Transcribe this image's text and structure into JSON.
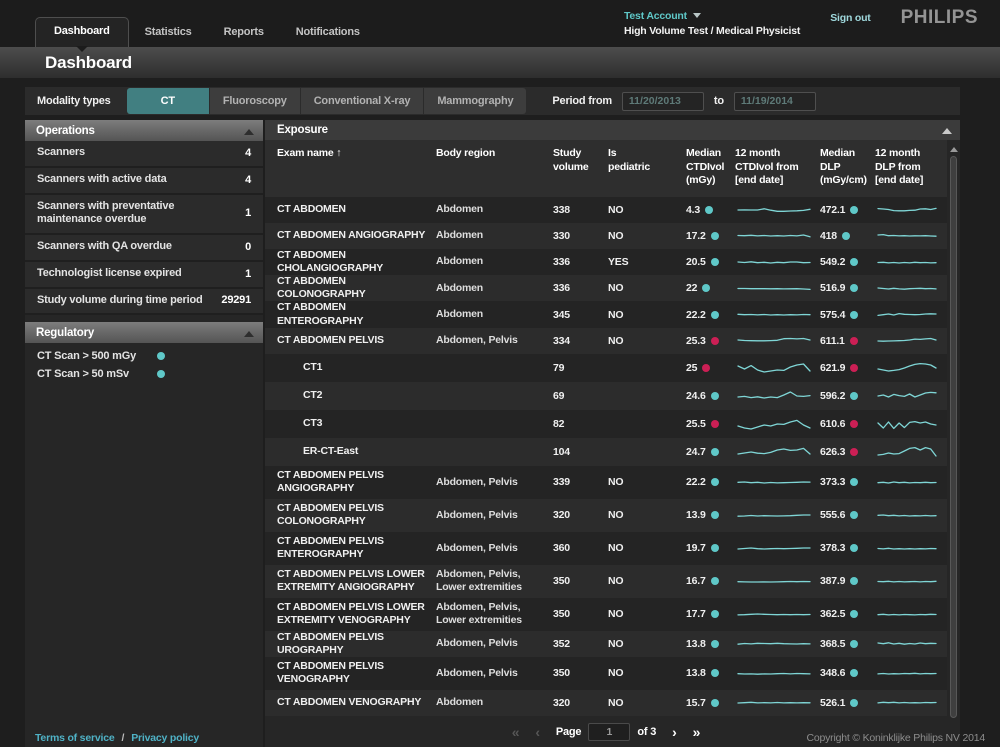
{
  "colors": {
    "accent_teal": "#417f81",
    "dot_ok": "#5fc8c8",
    "dot_alert": "#cc1f55",
    "sparkline": "#7fd6d6"
  },
  "nav": {
    "tabs": [
      {
        "label": "Dashboard",
        "active": true
      },
      {
        "label": "Statistics",
        "active": false
      },
      {
        "label": "Reports",
        "active": false
      },
      {
        "label": "Notifications",
        "active": false
      }
    ],
    "account": {
      "name": "Test Account",
      "role": "High Volume Test / Medical Physicist"
    },
    "sign_out": "Sign out",
    "brand": "PHILIPS"
  },
  "page": {
    "title": "Dashboard"
  },
  "filters": {
    "modality_label": "Modality types",
    "modalities": [
      {
        "label": "CT",
        "selected": true
      },
      {
        "label": "Fluoroscopy",
        "selected": false
      },
      {
        "label": "Conventional X-ray",
        "selected": false
      },
      {
        "label": "Mammography",
        "selected": false
      }
    ],
    "period_from_label": "Period from",
    "from_value": "11/20/2013",
    "to_label": "to",
    "to_value": "11/19/2014"
  },
  "sidebar": {
    "operations": {
      "title": "Operations",
      "stats": [
        {
          "label": "Scanners",
          "value": "4"
        },
        {
          "label": "Scanners with active data",
          "value": "4"
        },
        {
          "label": "Scanners with preventative maintenance overdue",
          "value": "1"
        },
        {
          "label": "Scanners with QA overdue",
          "value": "0"
        },
        {
          "label": "Technologist license expired",
          "value": "1"
        },
        {
          "label": "Study volume during time period",
          "value": "29291"
        }
      ]
    },
    "regulatory": {
      "title": "Regulatory",
      "items": [
        {
          "label": "CT Scan > 500 mGy",
          "status": "ok"
        },
        {
          "label": "CT Scan > 50 mSv",
          "status": "ok"
        }
      ]
    }
  },
  "table": {
    "title": "Exposure",
    "columns": [
      {
        "label": "Exam name",
        "sort": "asc"
      },
      {
        "label": "Body region"
      },
      {
        "label": "Study\nvolume"
      },
      {
        "label": "Is\npediatric"
      },
      {
        "label": "Median\nCTDIvol\n(mGy)"
      },
      {
        "label": "12 month\nCTDIvol from\n[end date]"
      },
      {
        "label": "Median\nDLP\n(mGy/cm)"
      },
      {
        "label": "12 month\nDLP from\n[end date]"
      }
    ],
    "rows": [
      {
        "name": "CT ABDOMEN",
        "body": "Abdomen",
        "volume": "338",
        "pediatric": "NO",
        "ctdi": "4.3",
        "ctdi_status": "ok",
        "ctdi_trend": [
          45,
          46,
          44,
          45,
          58,
          42,
          30,
          30,
          33,
          36,
          40,
          52
        ],
        "dlp": "472.1",
        "dlp_status": "ok",
        "dlp_trend": [
          60,
          55,
          50,
          38,
          35,
          35,
          40,
          42,
          55,
          58,
          50,
          62
        ],
        "type": "normal",
        "lines": 1
      },
      {
        "name": "CT ABDOMEN ANGIOGRAPHY",
        "body": "Abdomen",
        "volume": "330",
        "pediatric": "NO",
        "ctdi": "17.2",
        "ctdi_status": "ok",
        "ctdi_trend": [
          50,
          48,
          52,
          46,
          50,
          44,
          48,
          45,
          50,
          46,
          55,
          35
        ],
        "dlp": "418",
        "dlp_status": "ok",
        "dlp_trend": [
          55,
          60,
          48,
          50,
          46,
          48,
          45,
          47,
          46,
          48,
          45,
          42
        ],
        "type": "normal",
        "lines": 1
      },
      {
        "name": "CT ABDOMEN CHOLANGIOGRAPHY",
        "body": "Abdomen",
        "volume": "336",
        "pediatric": "YES",
        "ctdi": "20.5",
        "ctdi_status": "ok",
        "ctdi_trend": [
          55,
          50,
          58,
          48,
          52,
          45,
          52,
          48,
          55,
          55,
          48,
          50
        ],
        "dlp": "549.2",
        "dlp_status": "ok",
        "dlp_trend": [
          50,
          52,
          46,
          50,
          44,
          50,
          46,
          52,
          48,
          50,
          46,
          48
        ],
        "type": "normal",
        "lines": 1
      },
      {
        "name": "CT ABDOMEN COLONOGRAPHY",
        "body": "Abdomen",
        "volume": "336",
        "pediatric": "NO",
        "ctdi": "22",
        "ctdi_status": "ok",
        "ctdi_trend": [
          50,
          50,
          48,
          49,
          48,
          47,
          48,
          46,
          47,
          48,
          45,
          40
        ],
        "dlp": "516.9",
        "dlp_status": "ok",
        "dlp_trend": [
          55,
          50,
          45,
          52,
          46,
          42,
          48,
          50,
          52,
          48,
          50,
          46
        ],
        "type": "normal",
        "lines": 1
      },
      {
        "name": "CT ABDOMEN ENTEROGRAPHY",
        "body": "Abdomen",
        "volume": "345",
        "pediatric": "NO",
        "ctdi": "22.2",
        "ctdi_status": "ok",
        "ctdi_trend": [
          52,
          48,
          50,
          46,
          50,
          44,
          48,
          44,
          48,
          46,
          50,
          48
        ],
        "dlp": "575.4",
        "dlp_status": "ok",
        "dlp_trend": [
          40,
          48,
          55,
          45,
          60,
          52,
          50,
          48,
          50,
          55,
          58,
          56
        ],
        "type": "normal",
        "lines": 1
      },
      {
        "name": "CT ABDOMEN PELVIS",
        "body": "Abdomen, Pelvis",
        "volume": "334",
        "pediatric": "NO",
        "ctdi": "25.3",
        "ctdi_status": "alert",
        "ctdi_trend": [
          55,
          50,
          48,
          47,
          47,
          49,
          52,
          70,
          72,
          68,
          72,
          55
        ],
        "dlp": "611.1",
        "dlp_status": "alert",
        "dlp_trend": [
          45,
          42,
          44,
          46,
          48,
          50,
          55,
          65,
          62,
          68,
          72,
          55
        ],
        "type": "normal",
        "lines": 1
      },
      {
        "name": "CT1",
        "body": "",
        "volume": "79",
        "pediatric": "",
        "ctdi": "25",
        "ctdi_status": "alert",
        "ctdi_trend": [
          60,
          45,
          62,
          40,
          30,
          35,
          40,
          38,
          55,
          65,
          70,
          35
        ],
        "dlp": "621.9",
        "dlp_status": "alert",
        "dlp_trend": [
          45,
          40,
          35,
          38,
          42,
          50,
          60,
          68,
          72,
          70,
          65,
          50
        ],
        "type": "scanner",
        "lines": 1
      },
      {
        "name": "CT2",
        "body": "",
        "volume": "69",
        "pediatric": "",
        "ctdi": "24.6",
        "ctdi_status": "ok",
        "ctdi_trend": [
          45,
          48,
          42,
          46,
          40,
          45,
          42,
          55,
          70,
          50,
          48,
          52
        ],
        "dlp": "596.2",
        "dlp_status": "ok",
        "dlp_trend": [
          50,
          55,
          45,
          58,
          52,
          48,
          60,
          45,
          55,
          65,
          68,
          66
        ],
        "type": "scanner",
        "lines": 1
      },
      {
        "name": "CT3",
        "body": "",
        "volume": "82",
        "pediatric": "",
        "ctdi": "25.5",
        "ctdi_status": "alert",
        "ctdi_trend": [
          40,
          30,
          25,
          35,
          45,
          40,
          50,
          48,
          60,
          68,
          45,
          30
        ],
        "dlp": "610.6",
        "dlp_status": "alert",
        "dlp_trend": [
          55,
          30,
          60,
          28,
          55,
          32,
          58,
          62,
          55,
          60,
          50,
          45
        ],
        "type": "scanner",
        "lines": 1
      },
      {
        "name": "ER-CT-East",
        "body": "",
        "volume": "104",
        "pediatric": "",
        "ctdi": "24.7",
        "ctdi_status": "ok",
        "ctdi_trend": [
          40,
          45,
          50,
          44,
          42,
          48,
          60,
          65,
          58,
          60,
          68,
          40
        ],
        "dlp": "626.3",
        "dlp_status": "alert",
        "dlp_trend": [
          35,
          38,
          45,
          40,
          42,
          55,
          68,
          72,
          60,
          72,
          65,
          30
        ],
        "type": "scanner",
        "lines": 1
      },
      {
        "name": "CT ABDOMEN PELVIS ANGIOGRAPHY",
        "body": "Abdomen, Pelvis",
        "volume": "339",
        "pediatric": "NO",
        "ctdi": "22.2",
        "ctdi_status": "ok",
        "ctdi_trend": [
          52,
          55,
          48,
          52,
          45,
          50,
          46,
          48,
          50,
          52,
          55,
          54
        ],
        "dlp": "373.3",
        "dlp_status": "ok",
        "dlp_trend": [
          48,
          52,
          45,
          55,
          48,
          52,
          46,
          50,
          48,
          52,
          48,
          50
        ],
        "type": "normal",
        "lines": 2
      },
      {
        "name": "CT ABDOMEN PELVIS COLONOGRAPHY",
        "body": "Abdomen, Pelvis",
        "volume": "320",
        "pediatric": "NO",
        "ctdi": "13.9",
        "ctdi_status": "ok",
        "ctdi_trend": [
          42,
          45,
          50,
          44,
          48,
          46,
          44,
          46,
          48,
          52,
          55,
          56
        ],
        "dlp": "555.6",
        "dlp_status": "ok",
        "dlp_trend": [
          52,
          55,
          48,
          52,
          46,
          50,
          45,
          48,
          46,
          50,
          46,
          48
        ],
        "type": "normal",
        "lines": 2
      },
      {
        "name": "CT ABDOMEN PELVIS ENTEROGRAPHY",
        "body": "Abdomen, Pelvis",
        "volume": "360",
        "pediatric": "NO",
        "ctdi": "19.7",
        "ctdi_status": "ok",
        "ctdi_trend": [
          45,
          50,
          55,
          48,
          44,
          48,
          50,
          48,
          50,
          52,
          55,
          56
        ],
        "dlp": "378.3",
        "dlp_status": "ok",
        "dlp_trend": [
          50,
          46,
          52,
          44,
          48,
          44,
          48,
          45,
          48,
          46,
          50,
          48
        ],
        "type": "normal",
        "lines": 2
      },
      {
        "name": "CT ABDOMEN PELVIS LOWER EXTREMITY ANGIOGRAPHY",
        "body": "Abdomen, Pelvis, Lower extremities",
        "volume": "350",
        "pediatric": "NO",
        "ctdi": "16.7",
        "ctdi_status": "ok",
        "ctdi_trend": [
          48,
          46,
          44,
          45,
          46,
          45,
          46,
          48,
          50,
          48,
          50,
          49
        ],
        "dlp": "387.9",
        "dlp_status": "ok",
        "dlp_trend": [
          50,
          48,
          52,
          46,
          50,
          46,
          48,
          50,
          46,
          50,
          48,
          52
        ],
        "type": "normal",
        "lines": 2
      },
      {
        "name": "CT ABDOMEN PELVIS LOWER EXTREMITY VENOGRAPHY",
        "body": "Abdomen, Pelvis, Lower extremities",
        "volume": "350",
        "pediatric": "NO",
        "ctdi": "17.7",
        "ctdi_status": "ok",
        "ctdi_trend": [
          46,
          48,
          52,
          55,
          52,
          50,
          48,
          50,
          48,
          50,
          48,
          50
        ],
        "dlp": "362.5",
        "dlp_status": "ok",
        "dlp_trend": [
          48,
          52,
          46,
          50,
          46,
          50,
          48,
          46,
          50,
          48,
          52,
          50
        ],
        "type": "normal",
        "lines": 2
      },
      {
        "name": "CT ABDOMEN PELVIS UROGRAPHY",
        "body": "Abdomen, Pelvis",
        "volume": "352",
        "pediatric": "NO",
        "ctdi": "13.8",
        "ctdi_status": "ok",
        "ctdi_trend": [
          42,
          50,
          46,
          52,
          50,
          48,
          52,
          48,
          46,
          44,
          48,
          46
        ],
        "dlp": "368.5",
        "dlp_status": "ok",
        "dlp_trend": [
          55,
          48,
          58,
          45,
          52,
          42,
          50,
          45,
          55,
          48,
          52,
          50
        ],
        "type": "normal",
        "lines": 1
      },
      {
        "name": "CT ABDOMEN PELVIS VENOGRAPHY",
        "body": "Abdomen, Pelvis",
        "volume": "350",
        "pediatric": "NO",
        "ctdi": "13.8",
        "ctdi_status": "ok",
        "ctdi_trend": [
          48,
          44,
          46,
          42,
          46,
          44,
          48,
          50,
          46,
          50,
          48,
          46
        ],
        "dlp": "348.6",
        "dlp_status": "ok",
        "dlp_trend": [
          46,
          50,
          44,
          48,
          46,
          50,
          48,
          52,
          46,
          50,
          48,
          50
        ],
        "type": "normal",
        "lines": 2
      },
      {
        "name": "CT ABDOMEN VENOGRAPHY",
        "body": "Abdomen",
        "volume": "320",
        "pediatric": "NO",
        "ctdi": "15.7",
        "ctdi_status": "ok",
        "ctdi_trend": [
          44,
          48,
          52,
          46,
          48,
          46,
          50,
          46,
          48,
          46,
          48,
          47
        ],
        "dlp": "526.1",
        "dlp_status": "ok",
        "dlp_trend": [
          46,
          52,
          48,
          52,
          46,
          50,
          46,
          48,
          46,
          50,
          48,
          50
        ],
        "type": "normal",
        "lines": 1
      }
    ]
  },
  "pagination": {
    "first": "«",
    "prev": "‹",
    "page_label": "Page",
    "page_value": "1",
    "of_label": "of 3",
    "next": "›",
    "last": "»"
  },
  "footer": {
    "terms": "Terms of service",
    "separator": "/",
    "privacy": "Privacy policy",
    "copyright": "Copyright © Koninklijke Philips NV 2014"
  }
}
